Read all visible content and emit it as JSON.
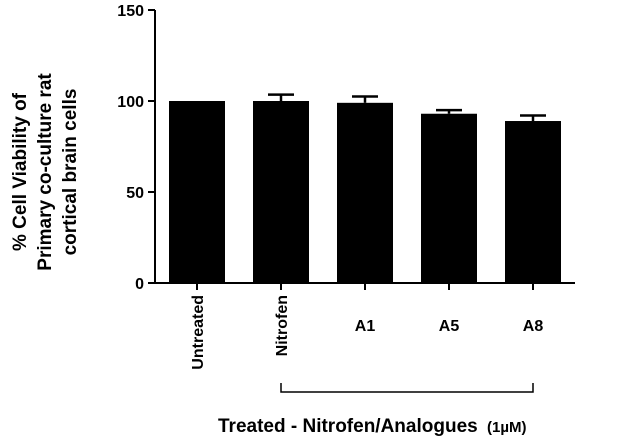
{
  "chart_data": {
    "type": "bar",
    "categories": [
      "Untreated",
      "Nitrofen",
      "A1",
      "A5",
      "A8"
    ],
    "values": [
      100,
      100,
      99,
      93,
      89
    ],
    "errors": [
      0,
      3.5,
      3.5,
      2,
      3
    ],
    "ylabel_lines": [
      "% Cell Viability of",
      "Primary co-culture rat",
      "cortical brain cells"
    ],
    "xlabel": "Treated - Nitrofen/Analogues",
    "xlabel_unit": "(1µM)",
    "ylim": [
      0,
      150
    ],
    "yticks": [
      0,
      50,
      100,
      150
    ],
    "rotated_categories": [
      "Untreated",
      "Nitrofen"
    ],
    "bracket_categories": [
      "Nitrofen",
      "A8"
    ],
    "bar_color": "#000000",
    "grid": false
  }
}
